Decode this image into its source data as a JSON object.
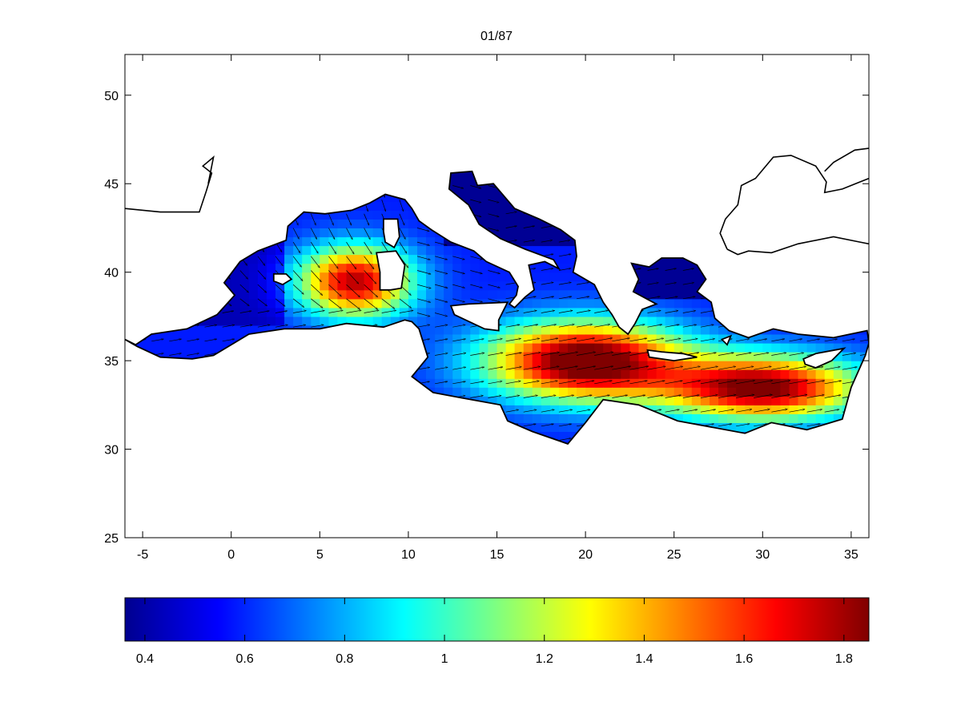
{
  "title": "01/87",
  "map": {
    "region": "Mediterranean Sea",
    "xlim": [
      -6,
      36
    ],
    "ylim": [
      25,
      52.3
    ],
    "x_ticks": [
      "-5",
      "0",
      "5",
      "10",
      "15",
      "20",
      "25",
      "30",
      "35"
    ],
    "y_ticks": [
      "25",
      "30",
      "35",
      "40",
      "45",
      "50"
    ],
    "colormap": "jet",
    "vectors": "quiver arrows, generally pointing east/southeast",
    "max_zones": [
      {
        "lon": 7,
        "lat": 39.5
      },
      {
        "lon": 20,
        "lat": 35
      },
      {
        "lon": 30,
        "lat": 33.5
      }
    ]
  },
  "colorbar": {
    "range": [
      0.36,
      1.85
    ],
    "ticks": [
      "0.4",
      "0.6",
      "0.8",
      "1",
      "1.2",
      "1.4",
      "1.6",
      "1.8"
    ]
  }
}
